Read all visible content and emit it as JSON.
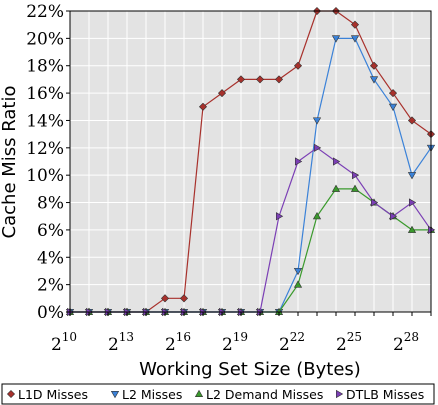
{
  "chart_data": {
    "type": "line",
    "xlabel": "Working Set Size (Bytes)",
    "ylabel": "Cache Miss Ratio",
    "x_scale": "log2",
    "x": [
      10,
      11,
      12,
      13,
      14,
      15,
      16,
      17,
      18,
      19,
      20,
      21,
      22,
      23,
      24,
      25,
      26,
      27,
      28,
      29
    ],
    "xlim": [
      10,
      29
    ],
    "ylim": [
      0,
      22
    ],
    "x_ticks": [
      {
        "value": 10,
        "base": "2",
        "exp": "10"
      },
      {
        "value": 13,
        "base": "2",
        "exp": "13"
      },
      {
        "value": 16,
        "base": "2",
        "exp": "16"
      },
      {
        "value": 19,
        "base": "2",
        "exp": "19"
      },
      {
        "value": 22,
        "base": "2",
        "exp": "22"
      },
      {
        "value": 25,
        "base": "2",
        "exp": "25"
      },
      {
        "value": 28,
        "base": "2",
        "exp": "28"
      }
    ],
    "y_ticks": [
      {
        "value": 0,
        "label": "0%"
      },
      {
        "value": 2,
        "label": "2%"
      },
      {
        "value": 4,
        "label": "4%"
      },
      {
        "value": 6,
        "label": "6%"
      },
      {
        "value": 8,
        "label": "8%"
      },
      {
        "value": 10,
        "label": "10%"
      },
      {
        "value": 12,
        "label": "12%"
      },
      {
        "value": 14,
        "label": "14%"
      },
      {
        "value": 16,
        "label": "16%"
      },
      {
        "value": 18,
        "label": "18%"
      },
      {
        "value": 20,
        "label": "20%"
      },
      {
        "value": 22,
        "label": "22%"
      }
    ],
    "grid": true,
    "legend_position": "bottom",
    "plot_background": "#e3e3e3",
    "series": [
      {
        "name": "L1D Misses",
        "color": "#a8312c",
        "fill": "#a8312c",
        "marker": "diamond",
        "values": [
          0,
          0,
          0,
          0,
          0,
          1,
          1,
          15,
          16,
          17,
          17,
          17,
          18,
          22,
          22,
          21,
          18,
          16,
          14,
          13
        ]
      },
      {
        "name": "L2 Misses",
        "color": "#3b82d8",
        "fill": "#3b82d8",
        "marker": "triangle-down",
        "values": [
          0,
          0,
          0,
          0,
          0,
          0,
          0,
          0,
          0,
          0,
          0,
          0,
          3,
          14,
          20,
          20,
          17,
          15,
          10,
          12
        ]
      },
      {
        "name": "L2 Demand Misses",
        "color": "#3a9a2c",
        "fill": "#3a9a2c",
        "marker": "triangle-up",
        "values": [
          0,
          0,
          0,
          0,
          0,
          0,
          0,
          0,
          0,
          0,
          0,
          0,
          2,
          7,
          9,
          9,
          8,
          7,
          6,
          6
        ]
      },
      {
        "name": "DTLB Misses",
        "color": "#7b3fb5",
        "fill": "#7b3fb5",
        "marker": "triangle-right",
        "values": [
          0,
          0,
          0,
          0,
          0,
          0,
          0,
          0,
          0,
          0,
          0,
          7,
          11,
          12,
          11,
          10,
          8,
          7,
          8,
          6
        ]
      }
    ]
  }
}
